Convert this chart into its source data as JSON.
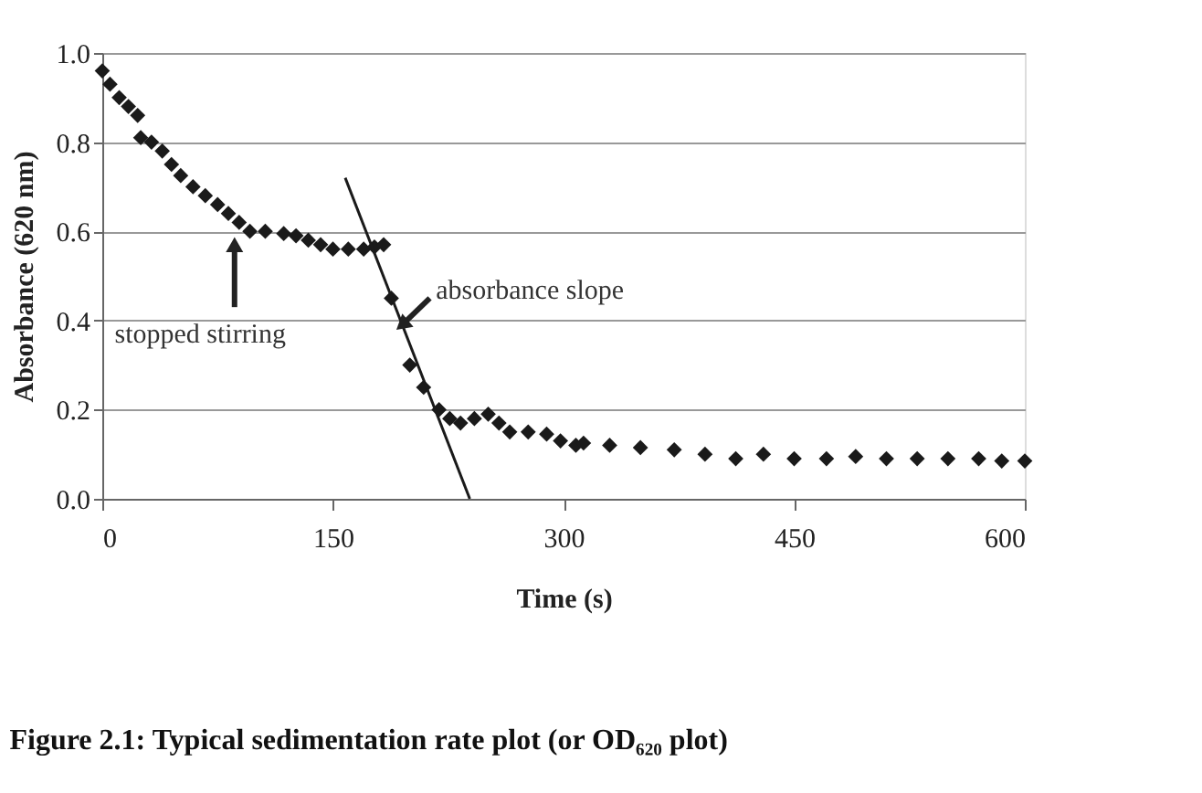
{
  "chart_data": {
    "type": "scatter",
    "title": "Figure 2.1: Typical sedimentation rate plot (or OD₆₂₀ plot)",
    "xlabel": "Time (s)",
    "ylabel": "Absorbance (620 nm)",
    "series": [
      {
        "color": "#1a1a1a",
        "marker": "diamond",
        "x": [
          0,
          5,
          11,
          17,
          23,
          25,
          32,
          39,
          45,
          51,
          59,
          67,
          75,
          82,
          89,
          96,
          106,
          118,
          126,
          134,
          142,
          150,
          160,
          170,
          177,
          183,
          188,
          200,
          209,
          219,
          226,
          233,
          242,
          251,
          258,
          265,
          277,
          289,
          298,
          308,
          313,
          330,
          350,
          372,
          392,
          412,
          430,
          450,
          471,
          490,
          510,
          530,
          550,
          570,
          585,
          600
        ],
        "values": [
          0.96,
          0.93,
          0.9,
          0.88,
          0.86,
          0.81,
          0.8,
          0.78,
          0.75,
          0.725,
          0.7,
          0.68,
          0.66,
          0.64,
          0.62,
          0.6,
          0.6,
          0.595,
          0.59,
          0.58,
          0.57,
          0.56,
          0.56,
          0.56,
          0.565,
          0.57,
          0.45,
          0.3,
          0.25,
          0.2,
          0.18,
          0.17,
          0.18,
          0.19,
          0.17,
          0.15,
          0.15,
          0.145,
          0.13,
          0.12,
          0.125,
          0.12,
          0.115,
          0.11,
          0.1,
          0.09,
          0.1,
          0.09,
          0.09,
          0.095,
          0.09,
          0.09,
          0.09,
          0.09,
          0.085,
          0.085
        ]
      },
      {
        "type": "line",
        "color": "#1a1a1a",
        "marker": "none",
        "x": [
          158,
          239
        ],
        "values": [
          0.72,
          0.0
        ]
      }
    ],
    "xlim": [
      0,
      600
    ],
    "xticks": [
      0,
      150,
      300,
      450,
      600
    ],
    "ylim": [
      0,
      1.0
    ],
    "yticks": [
      {
        "value": 0,
        "label": "0.0"
      },
      {
        "value": 0.2,
        "label": "0.2"
      },
      {
        "value": 0.4,
        "label": "0.4"
      },
      {
        "value": 0.6,
        "label": "0.6"
      },
      {
        "value": 0.8,
        "label": "0.8"
      },
      {
        "value": 1.0,
        "label": "1.0"
      }
    ],
    "grid": "y",
    "annotations": [
      {
        "text": "stopped stirring",
        "x": 86,
        "y": 0.57
      },
      {
        "text": "absorbance slope",
        "x": 195,
        "y": 0.39
      }
    ]
  }
}
